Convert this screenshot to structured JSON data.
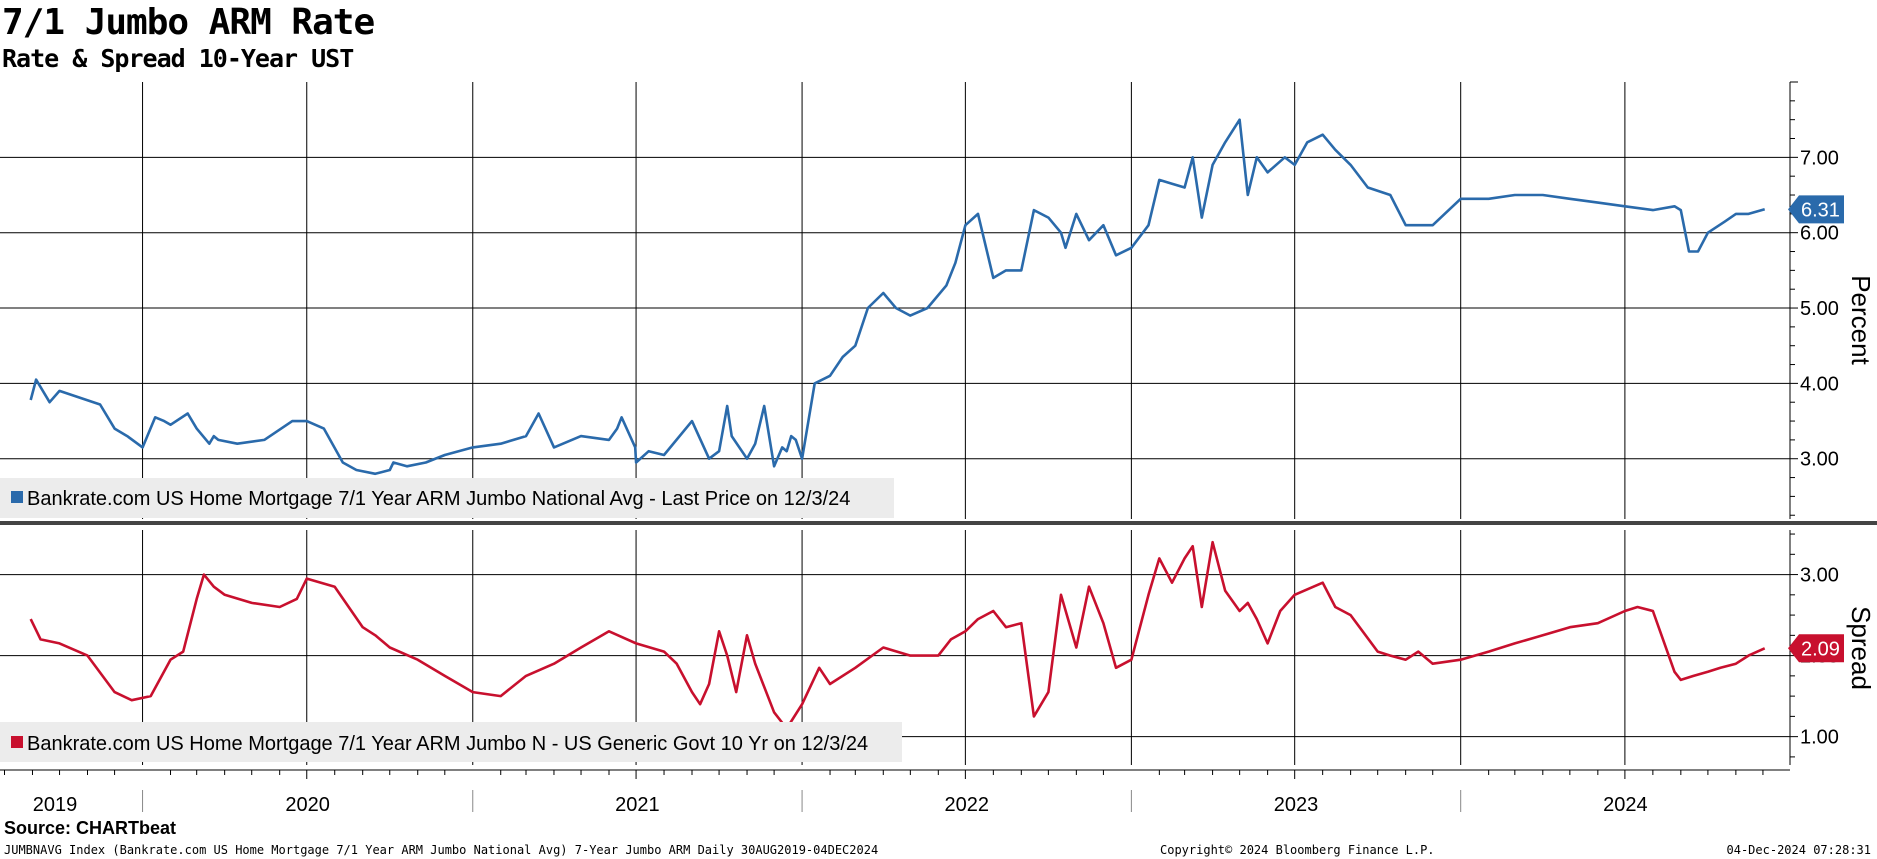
{
  "header": {
    "title": "7/1 Jumbo ARM Rate",
    "subtitle": "Rate & Spread 10-Year UST"
  },
  "footer": {
    "source": "Source: CHARTbeat",
    "index_desc": "JUMBNAVG Index (Bankrate.com US Home Mortgage 7/1 Year ARM Jumbo National Avg) 7-Year Jumbo ARM  Daily 30AUG2019-04DEC2024",
    "copyright": "Copyright© 2024 Bloomberg Finance L.P.",
    "timestamp": "04-Dec-2024 07:28:31"
  },
  "x_axis": {
    "years": [
      "2019",
      "2020",
      "2021",
      "2022",
      "2023",
      "2024"
    ]
  },
  "chart_data": [
    {
      "type": "line",
      "panel": "top",
      "ylabel": "Percent",
      "ylim": [
        2.2,
        8.0
      ],
      "yticks": [
        "3.00",
        "4.00",
        "5.00",
        "6.00",
        "7.00"
      ],
      "grid": true,
      "color": "#2a6aab",
      "legend": "Bankrate.com US Home Mortgage 7/1 Year ARM Jumbo National Avg - Last Price on 12/3/24",
      "last_value": "6.31",
      "series": [
        {
          "x": [
            "2019-08-30",
            "2019-09-05",
            "2019-09-20",
            "2019-10-01",
            "2019-11-15",
            "2019-12-01",
            "2019-12-15",
            "2020-01-01",
            "2020-01-15",
            "2020-01-25",
            "2020-02-01",
            "2020-02-20",
            "2020-03-01",
            "2020-03-15",
            "2020-03-20",
            "2020-03-25",
            "2020-04-15",
            "2020-05-15",
            "2020-06-15",
            "2020-07-01",
            "2020-07-20",
            "2020-08-10",
            "2020-08-25",
            "2020-09-15",
            "2020-10-01",
            "2020-10-05",
            "2020-10-20",
            "2020-11-10",
            "2020-12-01",
            "2021-01-01",
            "2021-02-01",
            "2021-03-01",
            "2021-03-15",
            "2021-04-01",
            "2021-05-01",
            "2021-06-01",
            "2021-06-10",
            "2021-06-15",
            "2021-06-30",
            "2021-07-01",
            "2021-07-15",
            "2021-08-01",
            "2021-09-01",
            "2021-09-20",
            "2021-10-01",
            "2021-10-10",
            "2021-10-15",
            "2021-11-01",
            "2021-11-10",
            "2021-11-20",
            "2021-12-01",
            "2021-12-10",
            "2021-12-15",
            "2021-12-20",
            "2021-12-25",
            "2022-01-01",
            "2022-01-15",
            "2022-02-01",
            "2022-02-15",
            "2022-03-01",
            "2022-03-15",
            "2022-04-01",
            "2022-04-15",
            "2022-05-01",
            "2022-05-20",
            "2022-06-10",
            "2022-06-20",
            "2022-07-01",
            "2022-07-15",
            "2022-08-01",
            "2022-08-15",
            "2022-09-01",
            "2022-09-15",
            "2022-10-01",
            "2022-10-15",
            "2022-10-20",
            "2022-11-01",
            "2022-11-15",
            "2022-12-01",
            "2022-12-15",
            "2023-01-01",
            "2023-01-20",
            "2023-02-01",
            "2023-02-15",
            "2023-03-01",
            "2023-03-10",
            "2023-03-20",
            "2023-04-01",
            "2023-04-15",
            "2023-05-01",
            "2023-05-10",
            "2023-05-20",
            "2023-06-01",
            "2023-06-20",
            "2023-07-01",
            "2023-07-15",
            "2023-08-01",
            "2023-08-15",
            "2023-09-01",
            "2023-09-20",
            "2023-10-15",
            "2023-11-01",
            "2023-11-15",
            "2023-12-01",
            "2024-01-01",
            "2024-02-01",
            "2024-03-01",
            "2024-04-01",
            "2024-05-01",
            "2024-06-01",
            "2024-07-01",
            "2024-08-01",
            "2024-08-25",
            "2024-09-01",
            "2024-09-10",
            "2024-09-20",
            "2024-10-01",
            "2024-10-20",
            "2024-11-01",
            "2024-11-15",
            "2024-12-03"
          ],
          "values": [
            3.78,
            4.05,
            3.75,
            3.9,
            3.72,
            3.4,
            3.3,
            3.15,
            3.55,
            3.5,
            3.45,
            3.6,
            3.4,
            3.2,
            3.3,
            3.25,
            3.2,
            3.25,
            3.5,
            3.5,
            3.4,
            2.95,
            2.85,
            2.8,
            2.85,
            2.95,
            2.9,
            2.95,
            3.05,
            3.15,
            3.2,
            3.3,
            3.6,
            3.15,
            3.3,
            3.25,
            3.4,
            3.55,
            3.15,
            2.95,
            3.1,
            3.05,
            3.5,
            3.0,
            3.1,
            3.7,
            3.3,
            3.0,
            3.2,
            3.7,
            2.9,
            3.15,
            3.1,
            3.3,
            3.25,
            3.0,
            4.0,
            4.1,
            4.35,
            4.5,
            5.0,
            5.2,
            5.0,
            4.9,
            5.0,
            5.3,
            5.6,
            6.1,
            6.25,
            5.4,
            5.5,
            5.5,
            6.3,
            6.2,
            6.0,
            5.8,
            6.25,
            5.9,
            6.1,
            5.7,
            5.8,
            6.1,
            6.7,
            6.65,
            6.6,
            7.0,
            6.2,
            6.9,
            7.2,
            7.5,
            6.5,
            7.0,
            6.8,
            7.0,
            6.9,
            7.2,
            7.3,
            7.1,
            6.9,
            6.6,
            6.5,
            6.1,
            6.1,
            6.1,
            6.45,
            6.45,
            6.5,
            6.5,
            6.45,
            6.4,
            6.35,
            6.3,
            6.35,
            6.3,
            5.75,
            5.75,
            6.0,
            6.15,
            6.25,
            6.25,
            6.31
          ]
        }
      ]
    },
    {
      "type": "line",
      "panel": "bottom",
      "ylabel": "Spread",
      "ylim": [
        0.65,
        3.55
      ],
      "yticks": [
        "1.00",
        "2.00",
        "3.00"
      ],
      "grid": true,
      "color": "#c8102e",
      "legend": "Bankrate.com US Home Mortgage 7/1 Year ARM Jumbo N - US Generic Govt 10 Yr on 12/3/24",
      "last_value": "2.09",
      "series": [
        {
          "x": [
            "2019-08-30",
            "2019-09-10",
            "2019-10-01",
            "2019-11-01",
            "2019-12-01",
            "2019-12-20",
            "2020-01-10",
            "2020-02-01",
            "2020-02-15",
            "2020-03-01",
            "2020-03-09",
            "2020-03-20",
            "2020-04-01",
            "2020-05-01",
            "2020-06-01",
            "2020-06-20",
            "2020-07-01",
            "2020-08-01",
            "2020-09-01",
            "2020-09-15",
            "2020-10-01",
            "2020-11-01",
            "2020-12-01",
            "2021-01-01",
            "2021-02-01",
            "2021-03-01",
            "2021-04-01",
            "2021-05-01",
            "2021-06-01",
            "2021-07-01",
            "2021-08-01",
            "2021-08-15",
            "2021-09-01",
            "2021-09-10",
            "2021-09-20",
            "2021-10-01",
            "2021-10-10",
            "2021-10-20",
            "2021-11-01",
            "2021-11-10",
            "2021-12-01",
            "2021-12-15",
            "2022-01-01",
            "2022-01-20",
            "2022-02-01",
            "2022-03-01",
            "2022-04-01",
            "2022-05-01",
            "2022-06-01",
            "2022-06-15",
            "2022-07-01",
            "2022-07-15",
            "2022-08-01",
            "2022-08-15",
            "2022-09-01",
            "2022-09-15",
            "2022-10-01",
            "2022-10-15",
            "2022-11-01",
            "2022-11-15",
            "2022-12-01",
            "2022-12-15",
            "2023-01-01",
            "2023-01-20",
            "2023-02-01",
            "2023-02-15",
            "2023-03-01",
            "2023-03-10",
            "2023-03-20",
            "2023-04-01",
            "2023-04-15",
            "2023-05-01",
            "2023-05-10",
            "2023-05-20",
            "2023-06-01",
            "2023-06-15",
            "2023-07-01",
            "2023-08-01",
            "2023-08-15",
            "2023-09-01",
            "2023-10-01",
            "2023-10-15",
            "2023-11-01",
            "2023-11-15",
            "2023-12-01",
            "2024-01-01",
            "2024-02-01",
            "2024-03-01",
            "2024-04-01",
            "2024-05-01",
            "2024-06-01",
            "2024-07-01",
            "2024-07-15",
            "2024-08-01",
            "2024-08-25",
            "2024-09-01",
            "2024-09-15",
            "2024-10-01",
            "2024-10-15",
            "2024-11-01",
            "2024-11-15",
            "2024-12-03"
          ],
          "values": [
            2.45,
            2.2,
            2.15,
            2.0,
            1.55,
            1.45,
            1.5,
            1.95,
            2.05,
            2.7,
            3.0,
            2.85,
            2.75,
            2.65,
            2.6,
            2.7,
            2.95,
            2.85,
            2.35,
            2.25,
            2.1,
            1.95,
            1.75,
            1.55,
            1.5,
            1.75,
            1.9,
            2.1,
            2.3,
            2.15,
            2.05,
            1.9,
            1.55,
            1.4,
            1.65,
            2.3,
            2.0,
            1.55,
            2.25,
            1.9,
            1.3,
            1.1,
            1.4,
            1.85,
            1.65,
            1.85,
            2.1,
            2.0,
            2.0,
            2.2,
            2.3,
            2.45,
            2.55,
            2.35,
            2.4,
            1.25,
            1.55,
            2.75,
            2.1,
            2.85,
            2.4,
            1.85,
            1.95,
            2.75,
            3.2,
            2.9,
            3.2,
            3.35,
            2.6,
            3.4,
            2.8,
            2.55,
            2.65,
            2.45,
            2.15,
            2.55,
            2.75,
            2.9,
            2.6,
            2.5,
            2.05,
            2.0,
            1.95,
            2.05,
            1.9,
            1.95,
            2.05,
            2.15,
            2.25,
            2.35,
            2.4,
            2.55,
            2.6,
            2.55,
            1.8,
            1.7,
            1.75,
            1.8,
            1.85,
            1.9,
            2.0,
            2.09
          ]
        }
      ]
    }
  ],
  "colors": {
    "rate_line": "#2a6aab",
    "spread_line": "#c8102e",
    "grid": "#000000",
    "legend_bg": "#ececec"
  }
}
